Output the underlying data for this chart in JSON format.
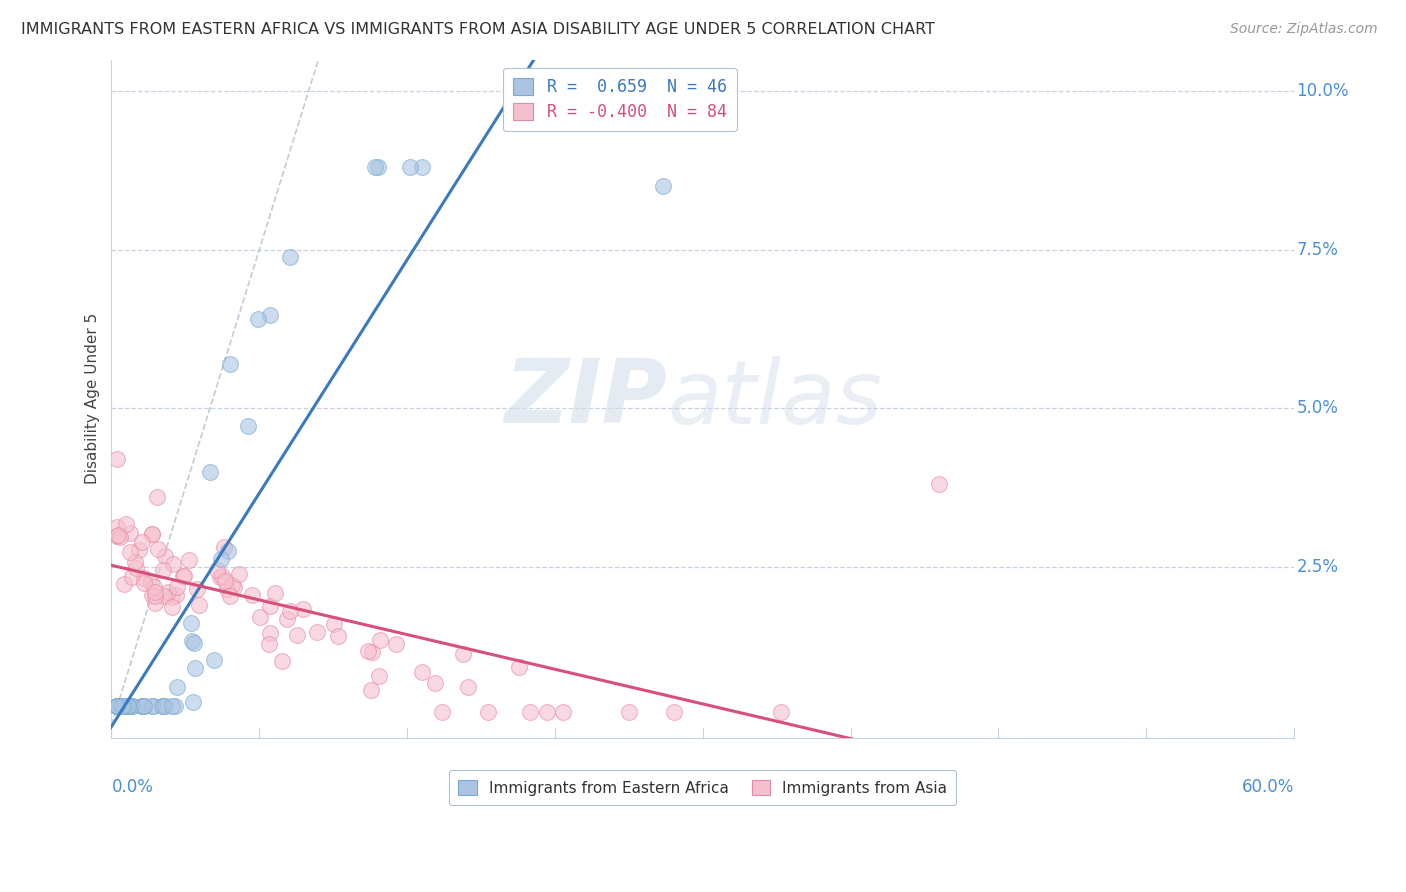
{
  "title": "IMMIGRANTS FROM EASTERN AFRICA VS IMMIGRANTS FROM ASIA DISABILITY AGE UNDER 5 CORRELATION CHART",
  "source": "Source: ZipAtlas.com",
  "ylabel": "Disability Age Under 5",
  "xlim": [
    0.0,
    0.6
  ],
  "ylim": [
    -0.002,
    0.105
  ],
  "ytick_values": [
    0.0,
    0.025,
    0.05,
    0.075,
    0.1
  ],
  "ytick_labels": [
    "",
    "2.5%",
    "5.0%",
    "7.5%",
    "10.0%"
  ],
  "series1_name": "Immigrants from Eastern Africa",
  "series1_R": 0.659,
  "series1_N": 46,
  "series1_color": "#aac4e2",
  "series1_edge_color": "#7aaad0",
  "series1_line_color": "#3a7abf",
  "series2_name": "Immigrants from Asia",
  "series2_R": -0.4,
  "series2_N": 84,
  "series2_color": "#f5c0ce",
  "series2_edge_color": "#e888a8",
  "series2_line_color": "#d8507a",
  "diagonal_color": "#b8c8d8",
  "background_color": "#ffffff",
  "grid_color": "#c8d4e4",
  "watermark_zip": "ZIP",
  "watermark_atlas": "atlas",
  "legend_R1_text": "R =  0.659  N = 46",
  "legend_R2_text": "R = -0.400  N = 84"
}
